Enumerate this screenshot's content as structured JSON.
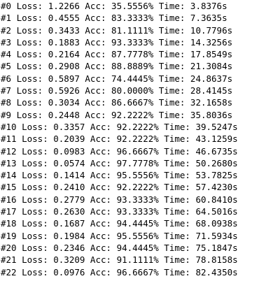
{
  "log": {
    "lines": [
      "#0 Loss: 1.2266 Acc: 35.5556% Time: 3.8376s",
      "#1 Loss: 0.4555 Acc: 83.3333% Time: 7.3635s",
      "#2 Loss: 0.3433 Acc: 81.1111% Time: 10.7796s",
      "#3 Loss: 0.1883 Acc: 93.3333% Time: 14.3256s",
      "#4 Loss: 0.2164 Acc: 87.7778% Time: 17.8549s",
      "#5 Loss: 0.2908 Acc: 88.8889% Time: 21.3084s",
      "#6 Loss: 0.5897 Acc: 74.4445% Time: 24.8637s",
      "#7 Loss: 0.5926 Acc: 80.0000% Time: 28.4145s",
      "#8 Loss: 0.3034 Acc: 86.6667% Time: 32.1658s",
      "#9 Loss: 0.2448 Acc: 92.2222% Time: 35.8036s",
      "#10 Loss: 0.3357 Acc: 92.2222% Time: 39.5247s",
      "#11 Loss: 0.2039 Acc: 92.2222% Time: 43.1259s",
      "#12 Loss: 0.0983 Acc: 96.6667% Time: 46.6735s",
      "#13 Loss: 0.0574 Acc: 97.7778% Time: 50.2680s",
      "#14 Loss: 0.1414 Acc: 95.5556% Time: 53.7825s",
      "#15 Loss: 0.2410 Acc: 92.2222% Time: 57.4230s",
      "#16 Loss: 0.2779 Acc: 93.3333% Time: 60.8410s",
      "#17 Loss: 0.2630 Acc: 93.3333% Time: 64.5016s",
      "#18 Loss: 0.1687 Acc: 94.4445% Time: 68.0938s",
      "#19 Loss: 0.1984 Acc: 95.5556% Time: 71.5934s",
      "#20 Loss: 0.2346 Acc: 94.4445% Time: 75.1847s",
      "#21 Loss: 0.3209 Acc: 91.1111% Time: 78.8158s",
      "#22 Loss: 0.0976 Acc: 96.6667% Time: 82.4350s"
    ]
  }
}
